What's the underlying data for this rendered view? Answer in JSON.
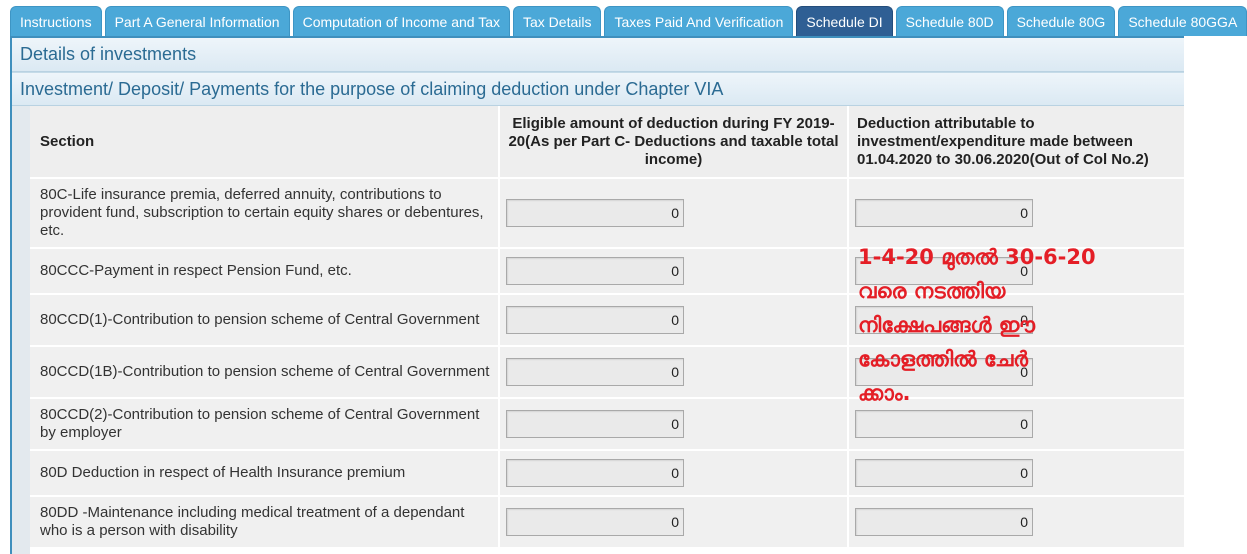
{
  "tabs": [
    {
      "label": "Instructions",
      "active": false
    },
    {
      "label": "Part A General Information",
      "active": false
    },
    {
      "label": "Computation of Income and Tax",
      "active": false
    },
    {
      "label": "Tax Details",
      "active": false
    },
    {
      "label": "Taxes Paid And Verification",
      "active": false
    },
    {
      "label": "Schedule DI",
      "active": true
    },
    {
      "label": "Schedule 80D",
      "active": false
    },
    {
      "label": "Schedule 80G",
      "active": false
    },
    {
      "label": "Schedule 80GGA",
      "active": false
    }
  ],
  "section_title": "Details of investments",
  "subsection_title": "Investment/ Deposit/ Payments for the purpose of claiming deduction under Chapter VIA",
  "table": {
    "headers": {
      "section": "Section",
      "eligible": "Eligible amount of deduction during FY 2019-20(As per Part C- Deductions and taxable total income)",
      "attributable": "Deduction attributable to investment/expenditure made between 01.04.2020 to 30.06.2020(Out of Col No.2)"
    },
    "rows": [
      {
        "section": "80C-Life insurance premia, deferred annuity, contributions to provident fund, subscription to certain equity shares or debentures, etc.",
        "eligible": "0",
        "attributable": "0"
      },
      {
        "section": "80CCC-Payment in respect Pension Fund, etc.",
        "eligible": "0",
        "attributable": "0"
      },
      {
        "section": "80CCD(1)-Contribution to pension scheme of Central Government",
        "eligible": "0",
        "attributable": "0"
      },
      {
        "section": "80CCD(1B)-Contribution to pension scheme of Central Government",
        "eligible": "0",
        "attributable": "0"
      },
      {
        "section": "80CCD(2)-Contribution to pension scheme of Central Government by employer",
        "eligible": "0",
        "attributable": "0"
      },
      {
        "section": "80D Deduction in respect of Health Insurance premium",
        "eligible": "0",
        "attributable": "0"
      },
      {
        "section": "80DD -Maintenance including medical treatment of a dependant who is a person with disability",
        "eligible": "0",
        "attributable": "0"
      }
    ]
  },
  "annotation": {
    "lines": [
      "1-4-20 മുതൽ 30-6-20",
      "വരെ നടത്തിയ",
      "നിക്ഷേപങ്ങൾ ഈ",
      "കോളത്തിൽ ചേർ",
      "ക്കാം."
    ],
    "color": "#e41e26"
  },
  "colors": {
    "tab": "#4ba8d8",
    "tab_active": "#2f5f94",
    "band_text": "#2b6b93"
  }
}
